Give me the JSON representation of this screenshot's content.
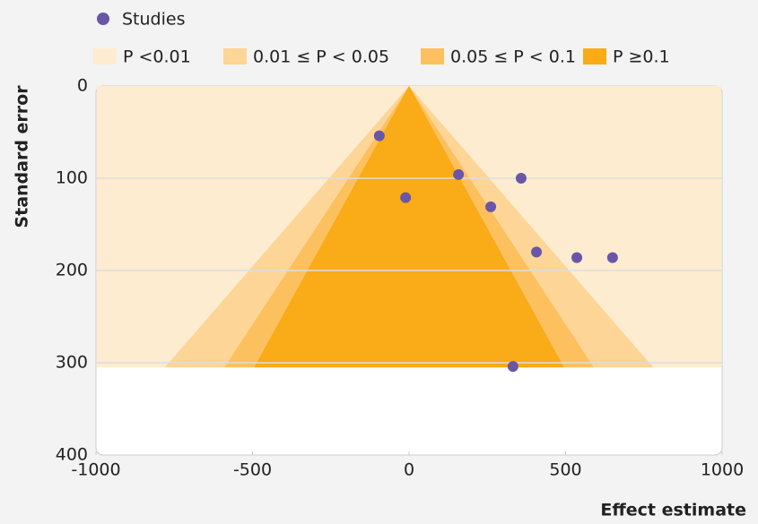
{
  "chart_data": {
    "type": "scatter",
    "x_label": "Effect estimate",
    "y_label": "Standard error",
    "xlim": [
      -1000,
      1000
    ],
    "ylim": [
      0,
      400
    ],
    "y_inverted": true,
    "xticks": [
      -1000,
      -500,
      0,
      500,
      1000
    ],
    "yticks": [
      0,
      100,
      200,
      300,
      400
    ],
    "grid": true,
    "series": [
      {
        "name": "Studies",
        "color": "#6a56a8",
        "x": [
          -95,
          -11,
          158,
          358,
          261,
          407,
          536,
          650,
          332
        ],
        "values": [
          54,
          121,
          96,
          100,
          131,
          180,
          186,
          186,
          304
        ]
      }
    ],
    "region_se": 305,
    "regions": [
      {
        "name": "P <0.01",
        "color": "#fdecd0"
      },
      {
        "name": "0.01 ≤ P < 0.05",
        "color": "#fdd596",
        "half_width": 780
      },
      {
        "name": "0.05 ≤ P < 0.1",
        "color": "#fcc15e",
        "half_width": 590
      },
      {
        "name": "P ≥0.1",
        "color": "#f9ab18",
        "half_width": 495
      }
    ]
  }
}
